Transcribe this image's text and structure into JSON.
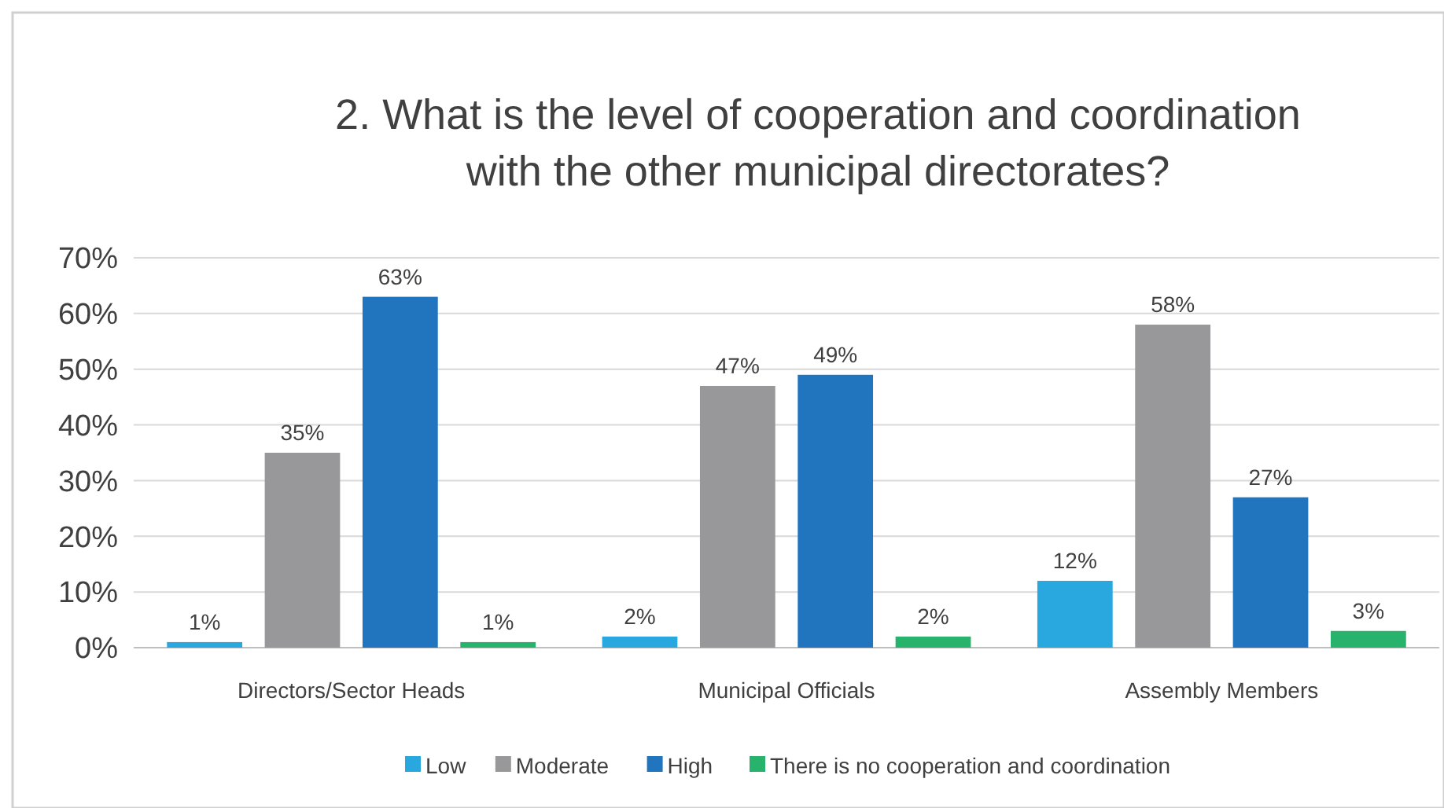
{
  "chart_data": {
    "type": "bar",
    "title": "2. What is the level of cooperation and coordination with the other municipal directorates?",
    "categories": [
      "Directors/Sector Heads",
      "Municipal Officials",
      "Assembly Members"
    ],
    "series": [
      {
        "name": "Low",
        "color": "#29a8e0",
        "values": [
          1,
          2,
          12
        ],
        "value_labels": [
          "1%",
          "2%",
          "12%"
        ]
      },
      {
        "name": "Moderate",
        "color": "#98989b",
        "values": [
          35,
          47,
          58
        ],
        "value_labels": [
          "35%",
          "47%",
          "58%"
        ]
      },
      {
        "name": "High",
        "color": "#2175bf",
        "values": [
          63,
          49,
          27
        ],
        "value_labels": [
          "63%",
          "49%",
          "27%"
        ]
      },
      {
        "name": "There is no cooperation and coordination",
        "color": "#27b36b",
        "values": [
          1,
          2,
          3
        ],
        "value_labels": [
          "1%",
          "2%",
          "3%"
        ]
      }
    ],
    "ylim": [
      0,
      70
    ],
    "yticks": [
      {
        "value": 0,
        "label": "0%"
      },
      {
        "value": 10,
        "label": "10%"
      },
      {
        "value": 20,
        "label": "20%"
      },
      {
        "value": 30,
        "label": "30%"
      },
      {
        "value": 40,
        "label": "40%"
      },
      {
        "value": 50,
        "label": "50%"
      },
      {
        "value": 60,
        "label": "60%"
      },
      {
        "value": 70,
        "label": "70%"
      }
    ],
    "grid": "y",
    "legend": "bottom"
  }
}
